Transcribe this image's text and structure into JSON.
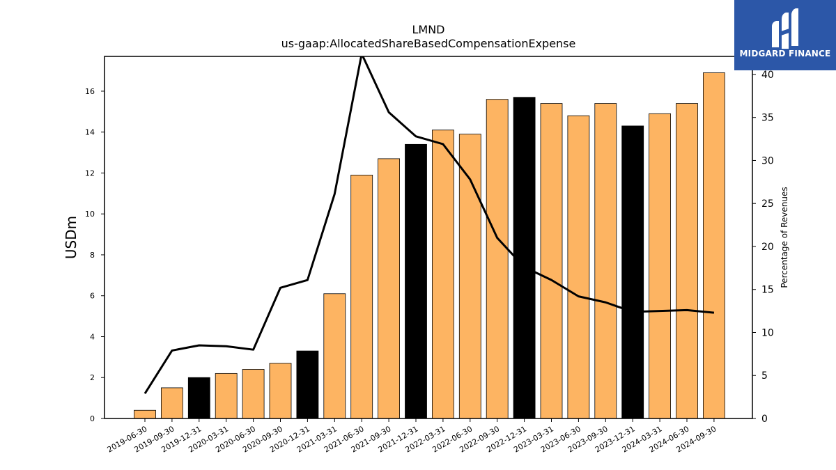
{
  "chart_data": {
    "type": "bar",
    "title": "LMND",
    "subtitle": "us-gaap:AllocatedShareBasedCompensationExpense",
    "ylabel": "USDm",
    "y2label": "Percentage of Revenues",
    "ylim": [
      0,
      17.7
    ],
    "y2lim": [
      0,
      42.1
    ],
    "yticks": [
      0,
      2,
      4,
      6,
      8,
      10,
      12,
      14,
      16
    ],
    "y2ticks": [
      0,
      5,
      10,
      15,
      20,
      25,
      30,
      35,
      40
    ],
    "categories": [
      "2019-06-30",
      "2019-09-30",
      "2019-12-31",
      "2020-03-31",
      "2020-06-30",
      "2020-09-30",
      "2020-12-31",
      "2021-03-31",
      "2021-06-30",
      "2021-09-30",
      "2021-12-31",
      "2022-03-31",
      "2022-06-30",
      "2022-09-30",
      "2022-12-31",
      "2023-03-31",
      "2023-06-30",
      "2023-09-30",
      "2023-12-31",
      "2024-03-31",
      "2024-06-30",
      "2024-09-30"
    ],
    "values": [
      0.4,
      1.5,
      2.0,
      2.2,
      2.4,
      2.7,
      3.3,
      6.1,
      11.9,
      12.7,
      13.4,
      14.1,
      13.9,
      15.6,
      15.7,
      15.4,
      14.8,
      15.4,
      14.3,
      14.9,
      15.4,
      16.9
    ],
    "highlight": [
      false,
      false,
      true,
      false,
      false,
      false,
      true,
      false,
      false,
      false,
      true,
      false,
      false,
      false,
      true,
      false,
      false,
      false,
      true,
      false,
      false,
      false
    ],
    "line_series": {
      "values": [
        2.9,
        7.9,
        8.5,
        8.4,
        8.0,
        15.2,
        16.1,
        26.1,
        42.4,
        35.6,
        32.8,
        31.9,
        27.8,
        21.0,
        17.6,
        16.1,
        14.2,
        13.5,
        12.4,
        12.5,
        12.6,
        12.3
      ]
    },
    "colors": {
      "bar": "#fdb462",
      "highlight_bar": "#000000",
      "line": "#000000"
    }
  },
  "logo": {
    "text": "MIDGARD FINANCE",
    "background": "#2c57a8",
    "icon": "midgard-logo-icon"
  }
}
